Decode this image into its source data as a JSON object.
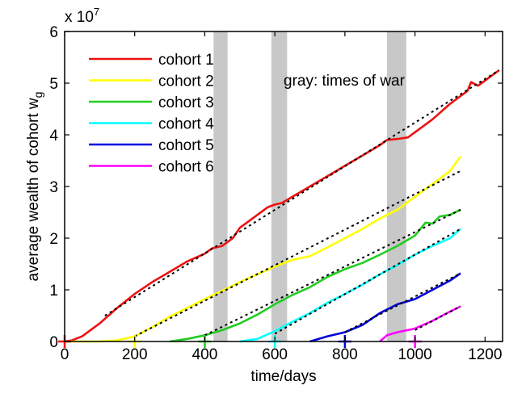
{
  "chart_data": {
    "type": "line",
    "xlabel": "time/days",
    "ylabel": "average wealth of cohort w",
    "ylabel_subscript": "g",
    "y_exponent_label": "x 10",
    "y_exponent_power": "7",
    "xlim": [
      0,
      1250
    ],
    "ylim": [
      0,
      6
    ],
    "xticks": [
      0,
      200,
      400,
      600,
      800,
      1000,
      1200
    ],
    "yticks": [
      0,
      1,
      2,
      3,
      4,
      5,
      6
    ],
    "xtick_labels": [
      "0",
      "200",
      "400",
      "600",
      "800",
      "1000",
      "1200"
    ],
    "ytick_labels": [
      "0",
      "1",
      "2",
      "3",
      "4",
      "5",
      "6"
    ],
    "grid": false,
    "legend_position": "top-left",
    "annotation": "gray: times of war",
    "war_periods": [
      [
        425,
        465
      ],
      [
        590,
        635
      ],
      [
        920,
        975
      ]
    ],
    "war_color": "#c8c8c8",
    "series": [
      {
        "name": "cohort 1",
        "color": "#ee1111",
        "start": 0,
        "x": [
          0,
          20,
          50,
          100,
          150,
          200,
          250,
          300,
          350,
          400,
          420,
          450,
          480,
          500,
          550,
          580,
          600,
          620,
          650,
          700,
          750,
          800,
          850,
          900,
          920,
          950,
          980,
          1000,
          1050,
          1100,
          1130,
          1150,
          1160,
          1180,
          1200,
          1240
        ],
        "y": [
          0,
          0.02,
          0.1,
          0.35,
          0.65,
          0.92,
          1.15,
          1.35,
          1.55,
          1.7,
          1.8,
          1.85,
          2.0,
          2.2,
          2.45,
          2.6,
          2.65,
          2.68,
          2.8,
          3.0,
          3.2,
          3.4,
          3.6,
          3.8,
          3.9,
          3.92,
          3.95,
          4.05,
          4.3,
          4.6,
          4.75,
          4.85,
          5.02,
          4.95,
          5.05,
          5.25
        ],
        "fit": [
          [
            115,
            0.5
          ],
          [
            1240,
            5.25
          ]
        ]
      },
      {
        "name": "cohort 2",
        "color": "#ffff00",
        "start": 200,
        "x": [
          0,
          100,
          150,
          200,
          250,
          300,
          350,
          400,
          450,
          500,
          550,
          600,
          650,
          700,
          750,
          800,
          850,
          900,
          950,
          1000,
          1050,
          1100,
          1130
        ],
        "y": [
          0,
          0,
          0.02,
          0.1,
          0.28,
          0.48,
          0.65,
          0.82,
          0.98,
          1.15,
          1.3,
          1.45,
          1.58,
          1.65,
          1.82,
          2.0,
          2.18,
          2.38,
          2.55,
          2.8,
          3.05,
          3.3,
          3.58
        ],
        "fit": [
          [
            200,
            0.1
          ],
          [
            1130,
            3.3
          ]
        ]
      },
      {
        "name": "cohort 3",
        "color": "#22cc22",
        "start": 400,
        "x": [
          300,
          350,
          400,
          450,
          500,
          550,
          600,
          650,
          700,
          750,
          800,
          850,
          900,
          950,
          1000,
          1030,
          1050,
          1070,
          1100,
          1130
        ],
        "y": [
          0,
          0.05,
          0.12,
          0.22,
          0.35,
          0.52,
          0.72,
          0.9,
          1.05,
          1.25,
          1.4,
          1.52,
          1.68,
          1.85,
          2.05,
          2.3,
          2.28,
          2.42,
          2.45,
          2.55
        ],
        "fit": [
          [
            400,
            0.12
          ],
          [
            1130,
            2.55
          ]
        ]
      },
      {
        "name": "cohort 4",
        "color": "#00ffff",
        "start": 600,
        "x": [
          500,
          550,
          600,
          650,
          700,
          750,
          800,
          850,
          900,
          950,
          1000,
          1050,
          1100,
          1130
        ],
        "y": [
          0,
          0.05,
          0.2,
          0.38,
          0.55,
          0.75,
          0.92,
          1.1,
          1.3,
          1.48,
          1.68,
          1.85,
          2.0,
          2.18
        ],
        "fit": [
          [
            600,
            0.15
          ],
          [
            1130,
            2.18
          ]
        ]
      },
      {
        "name": "cohort 5",
        "color": "#0000dd",
        "start": 800,
        "x": [
          700,
          750,
          800,
          850,
          900,
          950,
          1000,
          1050,
          1100,
          1130
        ],
        "y": [
          0,
          0.1,
          0.18,
          0.32,
          0.55,
          0.72,
          0.82,
          1.0,
          1.18,
          1.32
        ],
        "fit": [
          [
            800,
            0.18
          ],
          [
            1130,
            1.32
          ]
        ]
      },
      {
        "name": "cohort 6",
        "color": "#ff00ff",
        "start": 1000,
        "x": [
          900,
          920,
          950,
          1000,
          1050,
          1100,
          1130
        ],
        "y": [
          0,
          0.12,
          0.18,
          0.25,
          0.4,
          0.58,
          0.68
        ],
        "fit": [
          [
            1000,
            0.22
          ],
          [
            1130,
            0.68
          ]
        ]
      }
    ]
  }
}
